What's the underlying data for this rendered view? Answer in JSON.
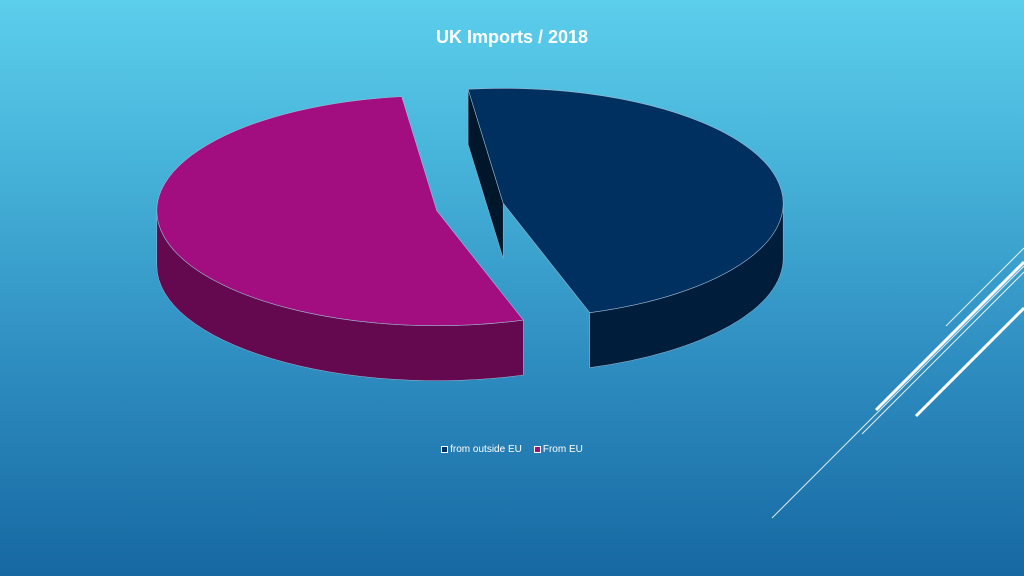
{
  "chart_data": {
    "type": "pie",
    "title": "UK Imports / 2018",
    "categories": [
      "from outside EU",
      "From EU"
    ],
    "values": [
      47,
      53
    ],
    "colors": [
      "#003060",
      "#a20d80"
    ],
    "legend": "bottom",
    "style": "3d-exploded"
  }
}
